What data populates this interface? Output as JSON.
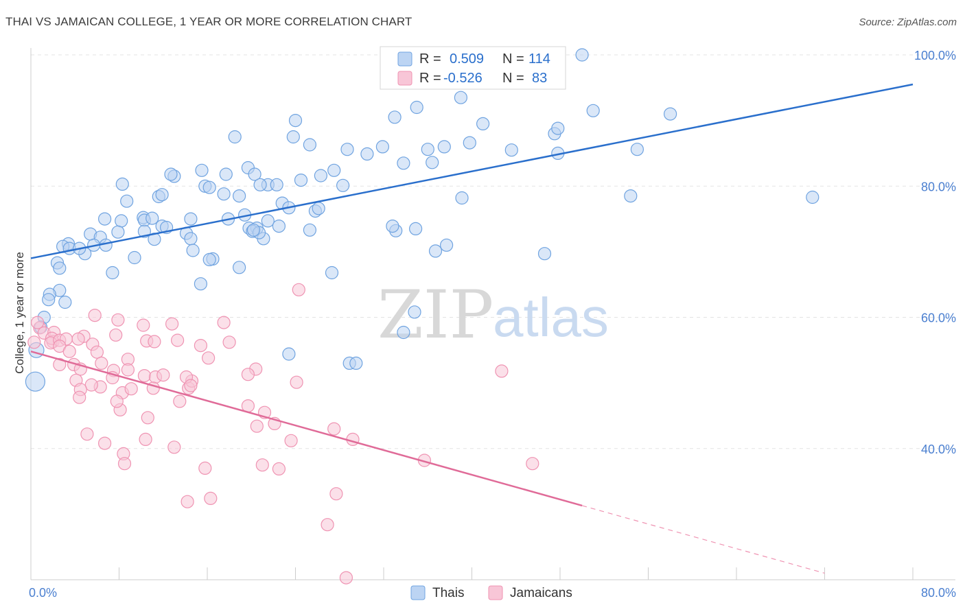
{
  "header": {
    "title": "THAI VS JAMAICAN COLLEGE, 1 YEAR OR MORE CORRELATION CHART",
    "source": "Source: ZipAtlas.com"
  },
  "watermark": {
    "zip": "ZIP",
    "atlas": "atlas"
  },
  "colors": {
    "thai": "#6fa3e0",
    "thai_fill": "#bcd4f3",
    "thai_line": "#2a6fcc",
    "jamaican": "#ef93b2",
    "jamaican_fill": "#f8c6d7",
    "jamaican_line": "#e06b98",
    "axis_text": "#4a7fd0"
  },
  "legend": {
    "r_label": "R =",
    "n_label": "N =",
    "rows": [
      {
        "series": "Thais",
        "r": "0.509",
        "n": "114"
      },
      {
        "series": "Jamaicans",
        "r": "-0.526",
        "n": "83"
      }
    ]
  },
  "chart_data": {
    "type": "scatter",
    "title": "THAI VS JAMAICAN COLLEGE, 1 YEAR OR MORE CORRELATION CHART",
    "xlabel": "",
    "ylabel": "College, 1 year or more",
    "xlim": [
      0,
      80
    ],
    "ylim": [
      20,
      100
    ],
    "x_ticks": [
      0,
      80
    ],
    "x_tick_labels": [
      "0.0%",
      "80.0%"
    ],
    "y_ticks": [
      40,
      60,
      80,
      100
    ],
    "y_tick_labels": [
      "40.0%",
      "60.0%",
      "80.0%",
      "100.0%"
    ],
    "grid": true,
    "legend_placement": "top-center",
    "series": [
      {
        "name": "Thais",
        "r": 0.509,
        "n": 114,
        "trend": {
          "x": [
            0,
            80
          ],
          "y": [
            69.0,
            95.5
          ]
        },
        "points": [
          [
            50,
            100
          ],
          [
            39,
            93.5
          ],
          [
            35,
            92
          ],
          [
            24,
            90
          ],
          [
            58,
            91
          ],
          [
            51,
            91.5
          ],
          [
            33,
            90.5
          ],
          [
            41,
            89.5
          ],
          [
            47.5,
            88
          ],
          [
            47.8,
            88.8
          ],
          [
            18.5,
            87.5
          ],
          [
            23.8,
            87.5
          ],
          [
            25.3,
            86.3
          ],
          [
            28.7,
            85.6
          ],
          [
            31.9,
            86
          ],
          [
            36,
            85.6
          ],
          [
            37.5,
            86
          ],
          [
            39.8,
            86.6
          ],
          [
            43.6,
            85.5
          ],
          [
            47.8,
            85
          ],
          [
            55,
            85.6
          ],
          [
            30.5,
            84.9
          ],
          [
            36.4,
            83.6
          ],
          [
            33.8,
            83.5
          ],
          [
            19.7,
            82.8
          ],
          [
            15.5,
            82.4
          ],
          [
            13,
            81.5
          ],
          [
            12.7,
            81.8
          ],
          [
            17.7,
            81.8
          ],
          [
            20.3,
            81.8
          ],
          [
            26.3,
            81.6
          ],
          [
            27.5,
            82.4
          ],
          [
            24.5,
            80.9
          ],
          [
            28.3,
            80.1
          ],
          [
            21.5,
            80.2
          ],
          [
            20.8,
            80.2
          ],
          [
            22.3,
            80.2
          ],
          [
            8.3,
            80.3
          ],
          [
            15.8,
            80
          ],
          [
            16.2,
            79.8
          ],
          [
            11.6,
            78.4
          ],
          [
            11.9,
            78.7
          ],
          [
            17.5,
            78.8
          ],
          [
            18.9,
            78.5
          ],
          [
            39.1,
            78.2
          ],
          [
            54.4,
            78.5
          ],
          [
            70.9,
            78.3
          ],
          [
            8.7,
            77.7
          ],
          [
            22.8,
            77.4
          ],
          [
            25.8,
            76.2
          ],
          [
            26.1,
            76.6
          ],
          [
            10.2,
            75.2
          ],
          [
            10.3,
            74.8
          ],
          [
            11,
            75.1
          ],
          [
            6.7,
            75
          ],
          [
            8.2,
            74.7
          ],
          [
            14.5,
            75
          ],
          [
            17.9,
            75
          ],
          [
            21.5,
            74.7
          ],
          [
            19.8,
            73.6
          ],
          [
            11.9,
            73.9
          ],
          [
            22.5,
            73.9
          ],
          [
            12.3,
            73.7
          ],
          [
            10.3,
            73.1
          ],
          [
            14.1,
            72.8
          ],
          [
            14.5,
            72
          ],
          [
            7.9,
            73
          ],
          [
            5.4,
            72.7
          ],
          [
            6.3,
            72.2
          ],
          [
            3.4,
            71.2
          ],
          [
            6.8,
            71
          ],
          [
            5.7,
            71
          ],
          [
            11.2,
            71.9
          ],
          [
            21.1,
            72
          ],
          [
            33.1,
            73.2
          ],
          [
            20.5,
            73.6
          ],
          [
            20.1,
            73.1
          ],
          [
            20.7,
            72.9
          ],
          [
            16.5,
            68.9
          ],
          [
            9.4,
            69.1
          ],
          [
            18.9,
            67.6
          ],
          [
            16.2,
            68.8
          ],
          [
            2.9,
            70.8
          ],
          [
            3.5,
            70.5
          ],
          [
            4.9,
            69.7
          ],
          [
            2.4,
            68.3
          ],
          [
            7.4,
            66.8
          ],
          [
            2.6,
            67.5
          ],
          [
            4.4,
            70.5
          ],
          [
            34.9,
            73.5
          ],
          [
            36.7,
            70.1
          ],
          [
            46.6,
            69.7
          ],
          [
            27.3,
            66.8
          ],
          [
            15.4,
            65.1
          ],
          [
            2.6,
            64.1
          ],
          [
            1.7,
            63.5
          ],
          [
            1.6,
            62.7
          ],
          [
            3.1,
            62.3
          ],
          [
            1.2,
            60
          ],
          [
            0.9,
            58.5
          ],
          [
            34.8,
            60.8
          ],
          [
            33.8,
            57.7
          ],
          [
            28.9,
            53
          ],
          [
            29.5,
            53
          ],
          [
            23.4,
            54.4
          ],
          [
            0.5,
            55
          ],
          [
            0.4,
            50.2
          ],
          [
            14.7,
            70.2
          ],
          [
            37.7,
            71
          ],
          [
            19.4,
            75.6
          ],
          [
            23.4,
            76.7
          ],
          [
            20.2,
            73.3
          ],
          [
            25.3,
            73.3
          ],
          [
            32.8,
            73.9
          ]
        ]
      },
      {
        "name": "Jamaicans",
        "r": -0.526,
        "n": 83,
        "trend": {
          "x": [
            0,
            50
          ],
          "y": [
            54.8,
            31.3
          ]
        },
        "trend_dashed": {
          "x": [
            50,
            72
          ],
          "y": [
            31.3,
            21.0
          ]
        },
        "points": [
          [
            24.3,
            64.2
          ],
          [
            5.8,
            60.3
          ],
          [
            7.9,
            59.6
          ],
          [
            17.5,
            59.2
          ],
          [
            12.8,
            59
          ],
          [
            10.2,
            58.8
          ],
          [
            0.8,
            58.4
          ],
          [
            1.2,
            57.6
          ],
          [
            2.1,
            57.7
          ],
          [
            0.6,
            59.2
          ],
          [
            2,
            56.3
          ],
          [
            1.9,
            56.8
          ],
          [
            1.8,
            56.1
          ],
          [
            2.6,
            56.5
          ],
          [
            3.2,
            56.7
          ],
          [
            4.8,
            57.1
          ],
          [
            4.3,
            56.7
          ],
          [
            7.7,
            57.3
          ],
          [
            0.3,
            56.2
          ],
          [
            5.6,
            55.9
          ],
          [
            10.5,
            56.4
          ],
          [
            11.2,
            56.3
          ],
          [
            2.6,
            55.6
          ],
          [
            13.3,
            56.5
          ],
          [
            18,
            56.2
          ],
          [
            15.4,
            55.7
          ],
          [
            3.5,
            54.8
          ],
          [
            6,
            54.7
          ],
          [
            16.1,
            53.8
          ],
          [
            8.8,
            53.6
          ],
          [
            6.4,
            53
          ],
          [
            3.9,
            52.8
          ],
          [
            2.6,
            52.8
          ],
          [
            4.5,
            52.1
          ],
          [
            8.8,
            52
          ],
          [
            20.4,
            52.1
          ],
          [
            7.5,
            51.9
          ],
          [
            19.7,
            51.3
          ],
          [
            7.4,
            50.8
          ],
          [
            10.3,
            51.1
          ],
          [
            11.3,
            50.9
          ],
          [
            12,
            51.2
          ],
          [
            14.3,
            49.2
          ],
          [
            14.6,
            50.3
          ],
          [
            14.1,
            50.9
          ],
          [
            4.1,
            50.4
          ],
          [
            6.3,
            49.4
          ],
          [
            11.1,
            49.2
          ],
          [
            24.1,
            50.1
          ],
          [
            14.5,
            49.6
          ],
          [
            5.5,
            49.7
          ],
          [
            4.5,
            49
          ],
          [
            8.3,
            48.5
          ],
          [
            9.1,
            49.1
          ],
          [
            4.4,
            47.8
          ],
          [
            8.1,
            45.9
          ],
          [
            13.5,
            47.2
          ],
          [
            10.6,
            44.7
          ],
          [
            7.8,
            47.2
          ],
          [
            19.7,
            46.5
          ],
          [
            21.2,
            45.5
          ],
          [
            27.5,
            43
          ],
          [
            20.5,
            43.4
          ],
          [
            22.1,
            43.8
          ],
          [
            5.1,
            42.2
          ],
          [
            6.7,
            40.8
          ],
          [
            8.4,
            39.2
          ],
          [
            10.4,
            41.4
          ],
          [
            13,
            40.2
          ],
          [
            15.8,
            37
          ],
          [
            21,
            37.5
          ],
          [
            23.6,
            41.2
          ],
          [
            29.2,
            41.4
          ],
          [
            35.7,
            38.2
          ],
          [
            45.5,
            37.7
          ],
          [
            8.5,
            37.7
          ],
          [
            22.5,
            36.9
          ],
          [
            16.3,
            32.4
          ],
          [
            14.2,
            31.9
          ],
          [
            27.7,
            33.1
          ],
          [
            26.9,
            28.4
          ],
          [
            28.6,
            20.3
          ],
          [
            42.7,
            51.8
          ]
        ]
      }
    ]
  }
}
